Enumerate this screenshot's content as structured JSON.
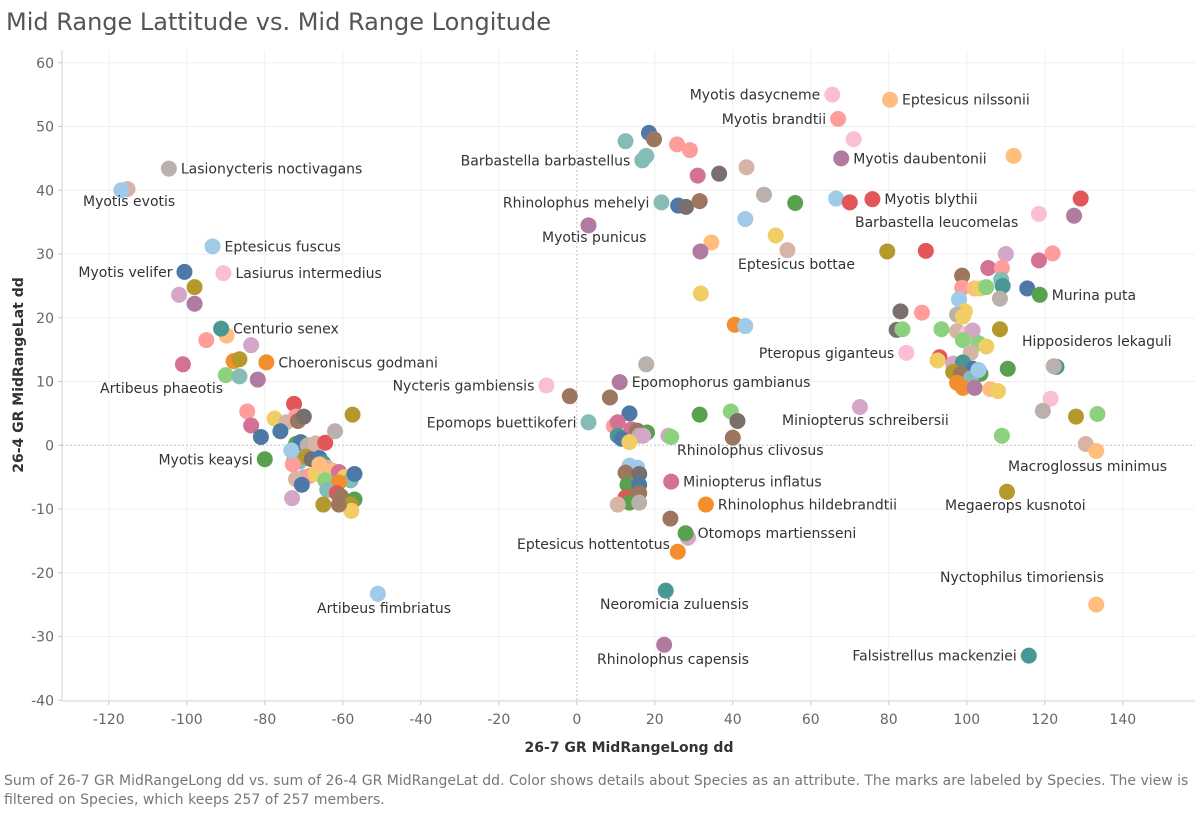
{
  "title": "Mid Range Lattitude vs. Mid Range Longitude",
  "caption": "Sum of 26-7 GR MidRangeLong dd vs. sum of 26-4 GR MidRangeLat dd.  Color shows details about Species as an attribute.  The marks are labeled by Species. The view is filtered on Species, which keeps 257 of 257 members.",
  "chart_data": {
    "type": "scatter",
    "title": "Mid Range Lattitude vs. Mid Range Longitude",
    "xlabel": "26-7 GR MidRangeLong dd",
    "ylabel": "26-4 GR MidRangeLat dd",
    "xlim": [
      -132,
      152
    ],
    "ylim": [
      -42,
      62
    ],
    "xticks": [
      -120,
      -100,
      -80,
      -60,
      -40,
      -20,
      0,
      20,
      40,
      60,
      80,
      100,
      120,
      140
    ],
    "yticks": [
      -40,
      -30,
      -20,
      -10,
      0,
      10,
      20,
      30,
      40,
      50,
      60
    ],
    "x_tick_labels": [
      "-120",
      "-100",
      "-80",
      "-60",
      "-40",
      "-20",
      "0",
      "20",
      "40",
      "60",
      "80",
      "100",
      "120",
      "140"
    ],
    "y_tick_labels": [
      "-40",
      "-30",
      "-20",
      "-10",
      "0",
      "10",
      "20",
      "30",
      "40",
      "50",
      "60"
    ],
    "grid": true,
    "zero_lines": true,
    "labeled_points": [
      {
        "x": -116.8,
        "y": 40.0,
        "label": "Myotis evotis",
        "color": "#a0cbe8",
        "anchor": "below"
      },
      {
        "x": -104.6,
        "y": 43.4,
        "label": "Lasionycteris noctivagans",
        "color": "#bab0ac",
        "anchor": "right"
      },
      {
        "x": -93.4,
        "y": 31.2,
        "label": "Eptesicus fuscus",
        "color": "#a0cbe8",
        "anchor": "right"
      },
      {
        "x": -100.6,
        "y": 27.2,
        "label": "Myotis velifer",
        "color": "#4e79a7",
        "anchor": "left"
      },
      {
        "x": -90.6,
        "y": 27.0,
        "label": "Lasiurus intermedius",
        "color": "#fabfd2",
        "anchor": "right"
      },
      {
        "x": -91.2,
        "y": 18.3,
        "label": "Centurio senex",
        "color": "#499894",
        "anchor": "right"
      },
      {
        "x": -79.6,
        "y": 13.0,
        "label": "Choeroniscus godmani",
        "color": "#f28e2b",
        "anchor": "right"
      },
      {
        "x": -101.0,
        "y": 12.7,
        "label": "Artibeus phaeotis",
        "color": "#d37295",
        "anchor": "belowright"
      },
      {
        "x": -80.0,
        "y": -2.2,
        "label": "Myotis keaysi",
        "color": "#59a14f",
        "anchor": "left"
      },
      {
        "x": -51.0,
        "y": -23.3,
        "label": "Artibeus fimbriatus",
        "color": "#a0cbe8",
        "anchor": "belowleft"
      },
      {
        "x": 65.5,
        "y": 55.0,
        "label": "Myotis dasycneme",
        "color": "#fabfd2",
        "anchor": "left"
      },
      {
        "x": 80.3,
        "y": 54.2,
        "label": "Eptesicus nilssonii",
        "color": "#ffbe7d",
        "anchor": "right"
      },
      {
        "x": 67.0,
        "y": 51.2,
        "label": "Myotis brandtii",
        "color": "#ff9d9a",
        "anchor": "left"
      },
      {
        "x": 16.8,
        "y": 44.7,
        "label": "Barbastella barbastellus",
        "color": "#86bcb6",
        "anchor": "left"
      },
      {
        "x": 67.8,
        "y": 45.0,
        "label": "Myotis daubentonii",
        "color": "#b07aa1",
        "anchor": "right"
      },
      {
        "x": 21.7,
        "y": 38.1,
        "label": "Rhinolophus mehelyi",
        "color": "#86bcb6",
        "anchor": "left"
      },
      {
        "x": 75.8,
        "y": 38.6,
        "label": "Myotis blythii",
        "color": "#e15759",
        "anchor": "right"
      },
      {
        "x": 3.0,
        "y": 34.5,
        "label": "Myotis punicus",
        "color": "#b07aa1",
        "anchor": "belowleft"
      },
      {
        "x": 79.6,
        "y": 30.4,
        "label": "Barbastella leucomelas",
        "color": "#b6992d",
        "anchor": "aboveright"
      },
      {
        "x": 31.7,
        "y": 30.4,
        "label": "Eptesicus bottae",
        "color": "#b07aa1",
        "anchor": "belowright"
      },
      {
        "x": 118.7,
        "y": 23.6,
        "label": "Murina puta",
        "color": "#59a14f",
        "anchor": "right"
      },
      {
        "x": 84.5,
        "y": 14.5,
        "label": "Pteropus giganteus",
        "color": "#fabfd2",
        "anchor": "left"
      },
      {
        "x": 122.3,
        "y": 12.4,
        "label": "Hipposideros lekaguli",
        "color": "#bab0ac",
        "anchor": "aboveright"
      },
      {
        "x": -7.8,
        "y": 9.4,
        "label": "Nycteris gambiensis",
        "color": "#fabfd2",
        "anchor": "left"
      },
      {
        "x": 11.0,
        "y": 9.9,
        "label": "Epomophorus gambianus",
        "color": "#b07aa1",
        "anchor": "right"
      },
      {
        "x": 3.0,
        "y": 3.6,
        "label": "Epomops buettikoferi",
        "color": "#86bcb6",
        "anchor": "left"
      },
      {
        "x": 72.6,
        "y": 6.0,
        "label": "Miniopterus schreibersii",
        "color": "#d4a6c8",
        "anchor": "belowright"
      },
      {
        "x": 24.2,
        "y": 1.3,
        "label": "Rhinolophus clivosus",
        "color": "#8cd17d",
        "anchor": "belowright"
      },
      {
        "x": 24.2,
        "y": -5.7,
        "label": "Miniopterus inflatus",
        "color": "#d37295",
        "anchor": "right"
      },
      {
        "x": 33.1,
        "y": -9.3,
        "label": "Rhinolophus hildebrandtii",
        "color": "#f28e2b",
        "anchor": "right"
      },
      {
        "x": 27.9,
        "y": -13.8,
        "label": "Otomops martiensseni",
        "color": "#59a14f",
        "anchor": "right"
      },
      {
        "x": 25.9,
        "y": -16.7,
        "label": "Eptesicus hottentotus",
        "color": "#f28e2b",
        "anchor": "left"
      },
      {
        "x": 133.2,
        "y": -0.9,
        "label": "Macroglossus minimus",
        "color": "#ffbe7d",
        "anchor": "belowright"
      },
      {
        "x": 110.3,
        "y": -7.3,
        "label": "Megaerops kusnotoi",
        "color": "#b6992d",
        "anchor": "belowright"
      },
      {
        "x": 22.8,
        "y": -22.8,
        "label": "Neoromicia zuluensis",
        "color": "#499894",
        "anchor": "belowright"
      },
      {
        "x": 133.2,
        "y": -25.0,
        "label": "Nyctophilus timoriensis",
        "color": "#ffbe7d",
        "anchor": "aboveleft"
      },
      {
        "x": 115.9,
        "y": -33.0,
        "label": "Falsistrellus mackenziei",
        "color": "#499894",
        "anchor": "left"
      },
      {
        "x": 22.4,
        "y": -31.3,
        "label": "Rhinolophus capensis",
        "color": "#b07aa1",
        "anchor": "belowright"
      }
    ],
    "unlabeled_points": [
      [
        -115.2,
        40.2,
        "#d7b5a6"
      ],
      [
        -102.0,
        23.6,
        "#d4a6c8"
      ],
      [
        -98.0,
        24.8,
        "#b6992d"
      ],
      [
        -98.0,
        22.2,
        "#b07aa1"
      ],
      [
        -95.0,
        16.5,
        "#ff9d9a"
      ],
      [
        -89.8,
        17.2,
        "#ffbe7d"
      ],
      [
        -88.0,
        13.2,
        "#f28e2b"
      ],
      [
        -90.0,
        11.0,
        "#8cd17d"
      ],
      [
        -86.5,
        13.5,
        "#b6992d"
      ],
      [
        -86.5,
        10.8,
        "#86bcb6"
      ],
      [
        -83.5,
        15.7,
        "#d4a6c8"
      ],
      [
        -81.8,
        10.3,
        "#b07aa1"
      ],
      [
        -84.5,
        5.3,
        "#ff9d9a"
      ],
      [
        -83.5,
        3.1,
        "#d37295"
      ],
      [
        -81.0,
        1.3,
        "#4e79a7"
      ],
      [
        -77.5,
        4.2,
        "#f1ce63"
      ],
      [
        -74.5,
        3.6,
        "#d7b5a6"
      ],
      [
        -72.5,
        6.5,
        "#e15759"
      ],
      [
        -72.0,
        4.5,
        "#ff9d9a"
      ],
      [
        -71.5,
        3.8,
        "#9d7660"
      ],
      [
        -70.0,
        4.5,
        "#79706e"
      ],
      [
        -76.0,
        2.2,
        "#4e79a7"
      ],
      [
        -72.0,
        0.2,
        "#59a14f"
      ],
      [
        -70.8,
        0.5,
        "#4e79a7"
      ],
      [
        -69.0,
        0.0,
        "#bab0ac"
      ],
      [
        -67.0,
        0.3,
        "#d7b5a6"
      ],
      [
        -64.5,
        0.4,
        "#e15759"
      ],
      [
        -62.0,
        2.2,
        "#bab0ac"
      ],
      [
        -57.5,
        4.8,
        "#b6992d"
      ],
      [
        -72.5,
        -2.5,
        "#b07aa1"
      ],
      [
        -71.0,
        -2.5,
        "#86bcb6"
      ],
      [
        -69.5,
        -1.8,
        "#b6992d"
      ],
      [
        -68.0,
        -2.2,
        "#79706e"
      ],
      [
        -66.0,
        -2.0,
        "#4e79a7"
      ],
      [
        -65.0,
        -2.8,
        "#499894"
      ],
      [
        -64.0,
        -3.5,
        "#d7b5a6"
      ],
      [
        -62.5,
        -4.0,
        "#ffbe7d"
      ],
      [
        -61.0,
        -4.2,
        "#d37295"
      ],
      [
        -59.5,
        -5.0,
        "#f1ce63"
      ],
      [
        -58.0,
        -5.5,
        "#86bcb6"
      ],
      [
        -57.0,
        -4.5,
        "#4e79a7"
      ],
      [
        -70.0,
        -5.0,
        "#d4a6c8"
      ],
      [
        -68.5,
        -4.8,
        "#ff9d9a"
      ],
      [
        -67.0,
        -4.5,
        "#f1ce63"
      ],
      [
        -66.0,
        -3.0,
        "#ffbe7d"
      ],
      [
        -64.5,
        -5.5,
        "#8cd17d"
      ],
      [
        -61.0,
        -5.8,
        "#f28e2b"
      ],
      [
        -72.0,
        -5.3,
        "#d7b5a6"
      ],
      [
        -70.5,
        -6.2,
        "#4e79a7"
      ],
      [
        -64.0,
        -7.0,
        "#86bcb6"
      ],
      [
        -61.5,
        -7.5,
        "#e15759"
      ],
      [
        -60.5,
        -8.0,
        "#9d7660"
      ],
      [
        -57.0,
        -8.5,
        "#59a14f"
      ],
      [
        -58.0,
        -9.3,
        "#b6992d"
      ],
      [
        -57.8,
        -10.3,
        "#f1ce63"
      ],
      [
        -65.0,
        -9.3,
        "#b6992d"
      ],
      [
        -61.0,
        -9.3,
        "#9d7660"
      ],
      [
        -73.0,
        -8.3,
        "#d4a6c8"
      ],
      [
        -72.8,
        -3.0,
        "#ff9d9a"
      ],
      [
        -73.2,
        -0.8,
        "#a0cbe8"
      ],
      [
        12.5,
        47.7,
        "#86bcb6"
      ],
      [
        18.5,
        49.0,
        "#4e79a7"
      ],
      [
        19.8,
        48.0,
        "#9d7660"
      ],
      [
        17.8,
        45.4,
        "#86bcb6"
      ],
      [
        25.7,
        47.2,
        "#ff9d9a"
      ],
      [
        29.0,
        46.3,
        "#ff9d9a"
      ],
      [
        31.0,
        42.3,
        "#d37295"
      ],
      [
        36.5,
        42.6,
        "#79706e"
      ],
      [
        43.5,
        43.6,
        "#d7b5a6"
      ],
      [
        48.0,
        39.3,
        "#bab0ac"
      ],
      [
        56.0,
        38.0,
        "#59a14f"
      ],
      [
        66.5,
        38.7,
        "#a0cbe8"
      ],
      [
        70.0,
        38.1,
        "#e15759"
      ],
      [
        26.0,
        37.6,
        "#4e79a7"
      ],
      [
        28.0,
        37.4,
        "#79706e"
      ],
      [
        31.5,
        38.3,
        "#9d7660"
      ],
      [
        43.2,
        35.5,
        "#a0cbe8"
      ],
      [
        51.0,
        32.9,
        "#f1ce63"
      ],
      [
        34.5,
        31.8,
        "#ffbe7d"
      ],
      [
        54.0,
        30.6,
        "#d7b5a6"
      ],
      [
        71.0,
        48.0,
        "#fabfd2"
      ],
      [
        112.0,
        45.4,
        "#ffbe7d"
      ],
      [
        118.5,
        36.3,
        "#fabfd2"
      ],
      [
        127.5,
        36.0,
        "#b07aa1"
      ],
      [
        129.2,
        38.7,
        "#e15759"
      ],
      [
        89.5,
        30.5,
        "#e15759"
      ],
      [
        110.0,
        30.0,
        "#d4a6c8"
      ],
      [
        122.0,
        30.1,
        "#ff9d9a"
      ],
      [
        118.5,
        29.0,
        "#d37295"
      ],
      [
        105.5,
        27.8,
        "#d37295"
      ],
      [
        109.0,
        27.8,
        "#ff9d9a"
      ],
      [
        98.8,
        26.6,
        "#9d7660"
      ],
      [
        108.8,
        26.0,
        "#86bcb6"
      ],
      [
        115.5,
        24.6,
        "#4e79a7"
      ],
      [
        98.8,
        24.7,
        "#ff9d9a"
      ],
      [
        102.0,
        24.6,
        "#ffbe7d"
      ],
      [
        103.5,
        24.6,
        "#f1ce63"
      ],
      [
        105.0,
        24.8,
        "#8cd17d"
      ],
      [
        109.2,
        25.0,
        "#499894"
      ],
      [
        31.8,
        23.8,
        "#f1ce63"
      ],
      [
        108.5,
        23.0,
        "#bab0ac"
      ],
      [
        98.0,
        22.9,
        "#a0cbe8"
      ],
      [
        83.0,
        21.0,
        "#79706e"
      ],
      [
        99.5,
        21.0,
        "#f1ce63"
      ],
      [
        88.5,
        20.8,
        "#ff9d9a"
      ],
      [
        97.5,
        20.5,
        "#bab0ac"
      ],
      [
        99.0,
        20.2,
        "#f1ce63"
      ],
      [
        40.5,
        18.9,
        "#f28e2b"
      ],
      [
        43.2,
        18.7,
        "#a0cbe8"
      ],
      [
        82.0,
        18.1,
        "#79706e"
      ],
      [
        83.5,
        18.2,
        "#8cd17d"
      ],
      [
        93.5,
        18.2,
        "#8cd17d"
      ],
      [
        97.5,
        17.9,
        "#d7b5a6"
      ],
      [
        100.0,
        17.5,
        "#fabfd2"
      ],
      [
        101.5,
        18.0,
        "#d4a6c8"
      ],
      [
        108.5,
        18.2,
        "#b6992d"
      ],
      [
        99.0,
        16.5,
        "#8cd17d"
      ],
      [
        103.0,
        16.0,
        "#8cd17d"
      ],
      [
        105.0,
        15.5,
        "#f1ce63"
      ],
      [
        101.0,
        14.5,
        "#d7b5a6"
      ],
      [
        93.0,
        13.8,
        "#e15759"
      ],
      [
        96.5,
        12.8,
        "#d4a6c8"
      ],
      [
        92.5,
        13.3,
        "#f1ce63"
      ],
      [
        99.0,
        13.0,
        "#499894"
      ],
      [
        101.5,
        12.0,
        "#4e79a7"
      ],
      [
        103.5,
        11.2,
        "#59a14f"
      ],
      [
        96.5,
        11.5,
        "#b6992d"
      ],
      [
        98.5,
        11.2,
        "#9d7660"
      ],
      [
        101.0,
        10.5,
        "#86bcb6"
      ],
      [
        103.0,
        11.8,
        "#a0cbe8"
      ],
      [
        110.5,
        12.0,
        "#59a14f"
      ],
      [
        123.0,
        12.3,
        "#499894"
      ],
      [
        97.5,
        9.8,
        "#f28e2b"
      ],
      [
        99.0,
        9.0,
        "#f28e2b"
      ],
      [
        102.0,
        9.0,
        "#b07aa1"
      ],
      [
        106.0,
        8.8,
        "#ffbe7d"
      ],
      [
        108.0,
        8.5,
        "#f1ce63"
      ],
      [
        121.5,
        7.3,
        "#fabfd2"
      ],
      [
        119.5,
        5.4,
        "#bab0ac"
      ],
      [
        128.0,
        4.5,
        "#b6992d"
      ],
      [
        133.5,
        4.9,
        "#8cd17d"
      ],
      [
        109.0,
        1.5,
        "#8cd17d"
      ],
      [
        130.5,
        0.2,
        "#d7b5a6"
      ],
      [
        8.5,
        7.5,
        "#9d7660"
      ],
      [
        -1.8,
        7.7,
        "#9d7660"
      ],
      [
        17.8,
        12.7,
        "#bab0ac"
      ],
      [
        13.5,
        5.0,
        "#4e79a7"
      ],
      [
        9.5,
        3.0,
        "#ff9d9a"
      ],
      [
        10.5,
        3.6,
        "#d37295"
      ],
      [
        14.0,
        2.5,
        "#d37295"
      ],
      [
        15.5,
        2.3,
        "#9d7660"
      ],
      [
        16.0,
        1.5,
        "#bab0ac"
      ],
      [
        18.0,
        2.0,
        "#59a14f"
      ],
      [
        17.0,
        1.5,
        "#d4a6c8"
      ],
      [
        10.5,
        1.5,
        "#499894"
      ],
      [
        11.5,
        1.0,
        "#4e79a7"
      ],
      [
        13.5,
        0.5,
        "#f1ce63"
      ],
      [
        23.5,
        1.5,
        "#d4a6c8"
      ],
      [
        31.5,
        4.8,
        "#59a14f"
      ],
      [
        39.5,
        5.3,
        "#8cd17d"
      ],
      [
        41.2,
        3.8,
        "#79706e"
      ],
      [
        40.0,
        1.2,
        "#9d7660"
      ],
      [
        13.5,
        -3.2,
        "#a0cbe8"
      ],
      [
        15.5,
        -3.5,
        "#a0cbe8"
      ],
      [
        12.5,
        -4.3,
        "#9d7660"
      ],
      [
        16.0,
        -4.5,
        "#79706e"
      ],
      [
        13.0,
        -6.2,
        "#59a14f"
      ],
      [
        16.0,
        -6.2,
        "#4e79a7"
      ],
      [
        16.0,
        -7.5,
        "#9d7660"
      ],
      [
        12.5,
        -8.2,
        "#e15759"
      ],
      [
        13.5,
        -9.0,
        "#59a14f"
      ],
      [
        10.5,
        -9.3,
        "#d7b5a6"
      ],
      [
        16.0,
        -9.0,
        "#bab0ac"
      ],
      [
        24.0,
        -11.5,
        "#9d7660"
      ],
      [
        28.5,
        -14.5,
        "#d4a6c8"
      ]
    ]
  }
}
